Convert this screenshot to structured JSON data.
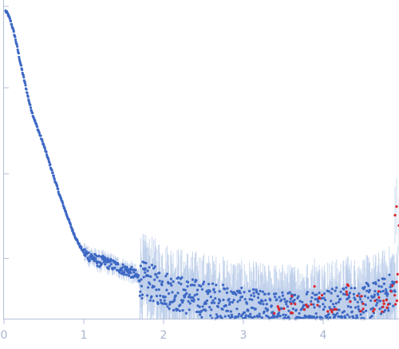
{
  "chart_data": {
    "type": "scatter",
    "title": "",
    "xlabel": "",
    "ylabel": "",
    "xlim": [
      0,
      4.95
    ],
    "ylim": [
      0,
      1.0
    ],
    "x_ticks": [
      0,
      1,
      2,
      3,
      4
    ],
    "x_tick_labels": [
      "0",
      "1",
      "2",
      "3",
      "4"
    ],
    "y_ticks": [
      0.195,
      0.465,
      0.74,
      1.0
    ],
    "y_tick_labels": [
      "",
      "",
      "",
      ""
    ],
    "grid": false,
    "legend": "none",
    "error_bars": true,
    "colors": {
      "positive": "#3d68c4",
      "negative": "#d9262b",
      "errorbar": "#b9cbe9",
      "axis": "#b3bfd9"
    },
    "series": [
      {
        "color": "#3d68c4",
        "x": [
          0.02,
          0.05,
          0.08,
          0.11,
          0.14,
          0.17,
          0.2,
          0.24,
          0.28,
          0.32,
          0.36,
          0.4,
          0.45,
          0.5,
          0.55,
          0.6,
          0.65,
          0.7,
          0.75,
          0.8,
          0.85,
          0.9,
          0.95,
          1.0,
          1.05,
          1.1,
          1.15,
          1.2,
          1.25,
          1.3,
          1.35,
          1.4,
          1.45,
          1.5,
          1.55,
          1.6,
          1.65,
          1.7,
          1.75,
          1.8,
          1.85,
          1.9,
          1.95,
          2.0,
          2.1,
          2.2,
          2.3,
          2.4,
          2.5,
          2.6,
          2.7,
          2.8,
          2.9,
          3.0,
          3.2,
          3.4,
          3.6,
          3.8,
          4.0,
          4.2,
          4.4,
          4.6,
          4.8,
          4.9
        ],
        "y": [
          0.985,
          0.975,
          0.955,
          0.93,
          0.9,
          0.865,
          0.825,
          0.78,
          0.735,
          0.69,
          0.655,
          0.625,
          0.59,
          0.555,
          0.515,
          0.475,
          0.435,
          0.395,
          0.36,
          0.325,
          0.29,
          0.26,
          0.235,
          0.215,
          0.205,
          0.2,
          0.19,
          0.185,
          0.185,
          0.18,
          0.175,
          0.17,
          0.165,
          0.16,
          0.155,
          0.15,
          0.14,
          0.13,
          0.125,
          0.12,
          0.115,
          0.11,
          0.105,
          0.1,
          0.09,
          0.08,
          0.075,
          0.07,
          0.065,
          0.06,
          0.055,
          0.05,
          0.045,
          0.04,
          0.035,
          0.03,
          0.03,
          0.035,
          0.04,
          0.045,
          0.05,
          0.06,
          0.08,
          0.1
        ]
      },
      {
        "color": "#d9262b",
        "x": [
          3.45,
          3.6,
          3.8,
          3.95,
          4.1,
          4.3,
          4.5,
          4.65,
          4.75,
          4.85,
          4.92,
          4.95
        ],
        "y": [
          0.03,
          0.05,
          0.04,
          0.07,
          0.03,
          0.08,
          0.05,
          0.06,
          0.04,
          0.09,
          0.12,
          0.3
        ]
      }
    ]
  }
}
